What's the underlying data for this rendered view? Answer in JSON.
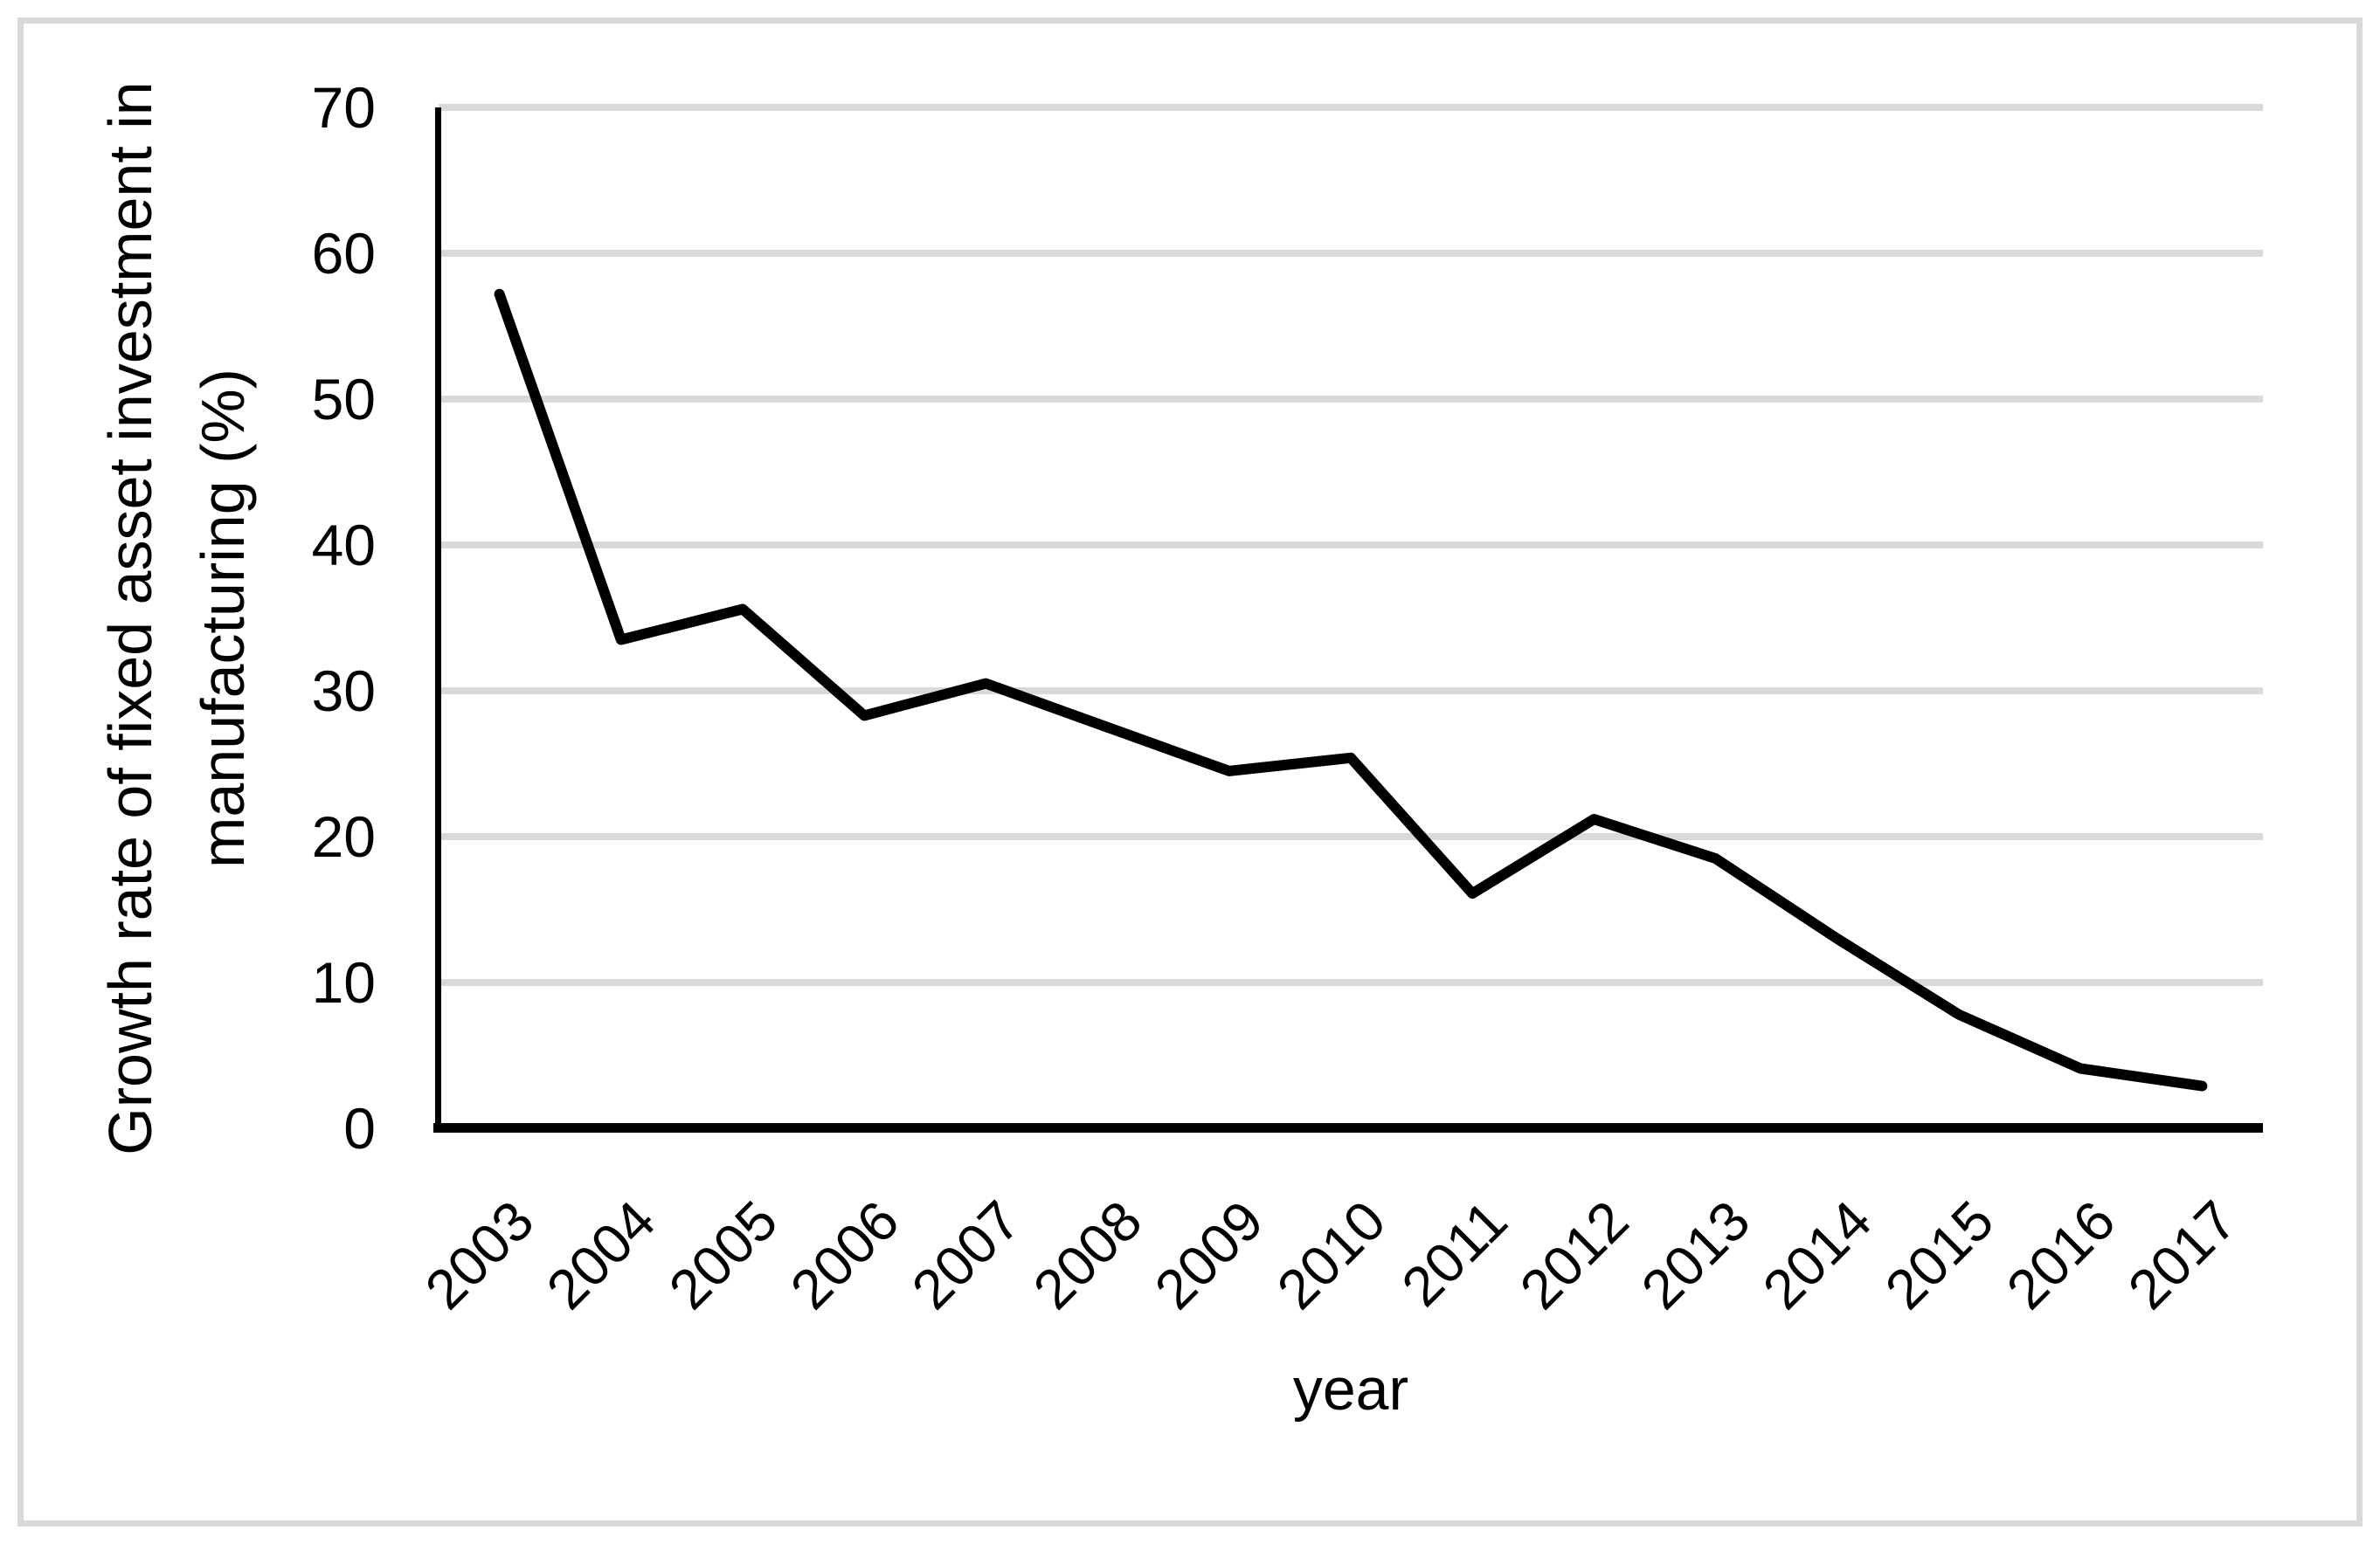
{
  "chart_data": {
    "type": "line",
    "categories": [
      "2003",
      "2004",
      "2005",
      "2006",
      "2007",
      "2008",
      "2009",
      "2010",
      "2011",
      "2012",
      "2013",
      "2014",
      "2015",
      "2016",
      "2017"
    ],
    "values": [
      57.2,
      33.5,
      35.6,
      28.3,
      30.5,
      27.5,
      24.5,
      25.4,
      16.1,
      21.2,
      18.5,
      13.0,
      7.8,
      4.1,
      2.9
    ],
    "series_name": "Growth rate of fixed asset investment in manufacturing",
    "xlabel": "year",
    "ylabel": "Growth rate of fixed asset investment in manufacturing (%)",
    "ylabel_line1": "Growth rate of fixed asset investment in",
    "ylabel_line2": "manufacturing (%)",
    "yticks": [
      0,
      10,
      20,
      30,
      40,
      50,
      60,
      70
    ],
    "ylim": [
      0,
      70
    ],
    "grid": "horizontal",
    "legend": "none",
    "line_color": "#000000",
    "gridline_color": "#d9d9d9",
    "axis_color": "#000000",
    "frame_color": "#d9d9d9",
    "background_color": "#ffffff"
  }
}
